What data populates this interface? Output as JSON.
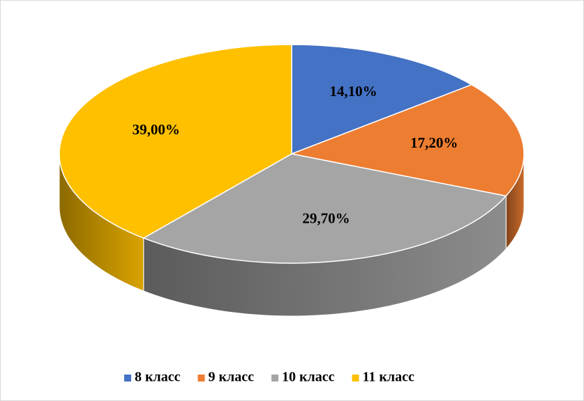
{
  "chart_data": {
    "type": "pie3d",
    "categories": [
      "8 класс",
      "9 класс",
      "10 класс",
      "11 класс"
    ],
    "values": [
      14.1,
      17.2,
      29.7,
      39.0
    ],
    "value_labels": [
      "14,10%",
      "17,20%",
      "29,70%",
      "39,00%"
    ],
    "colors": [
      "#4472c4",
      "#ed7d31",
      "#a5a5a5",
      "#ffc000"
    ],
    "legend": "bottom"
  }
}
